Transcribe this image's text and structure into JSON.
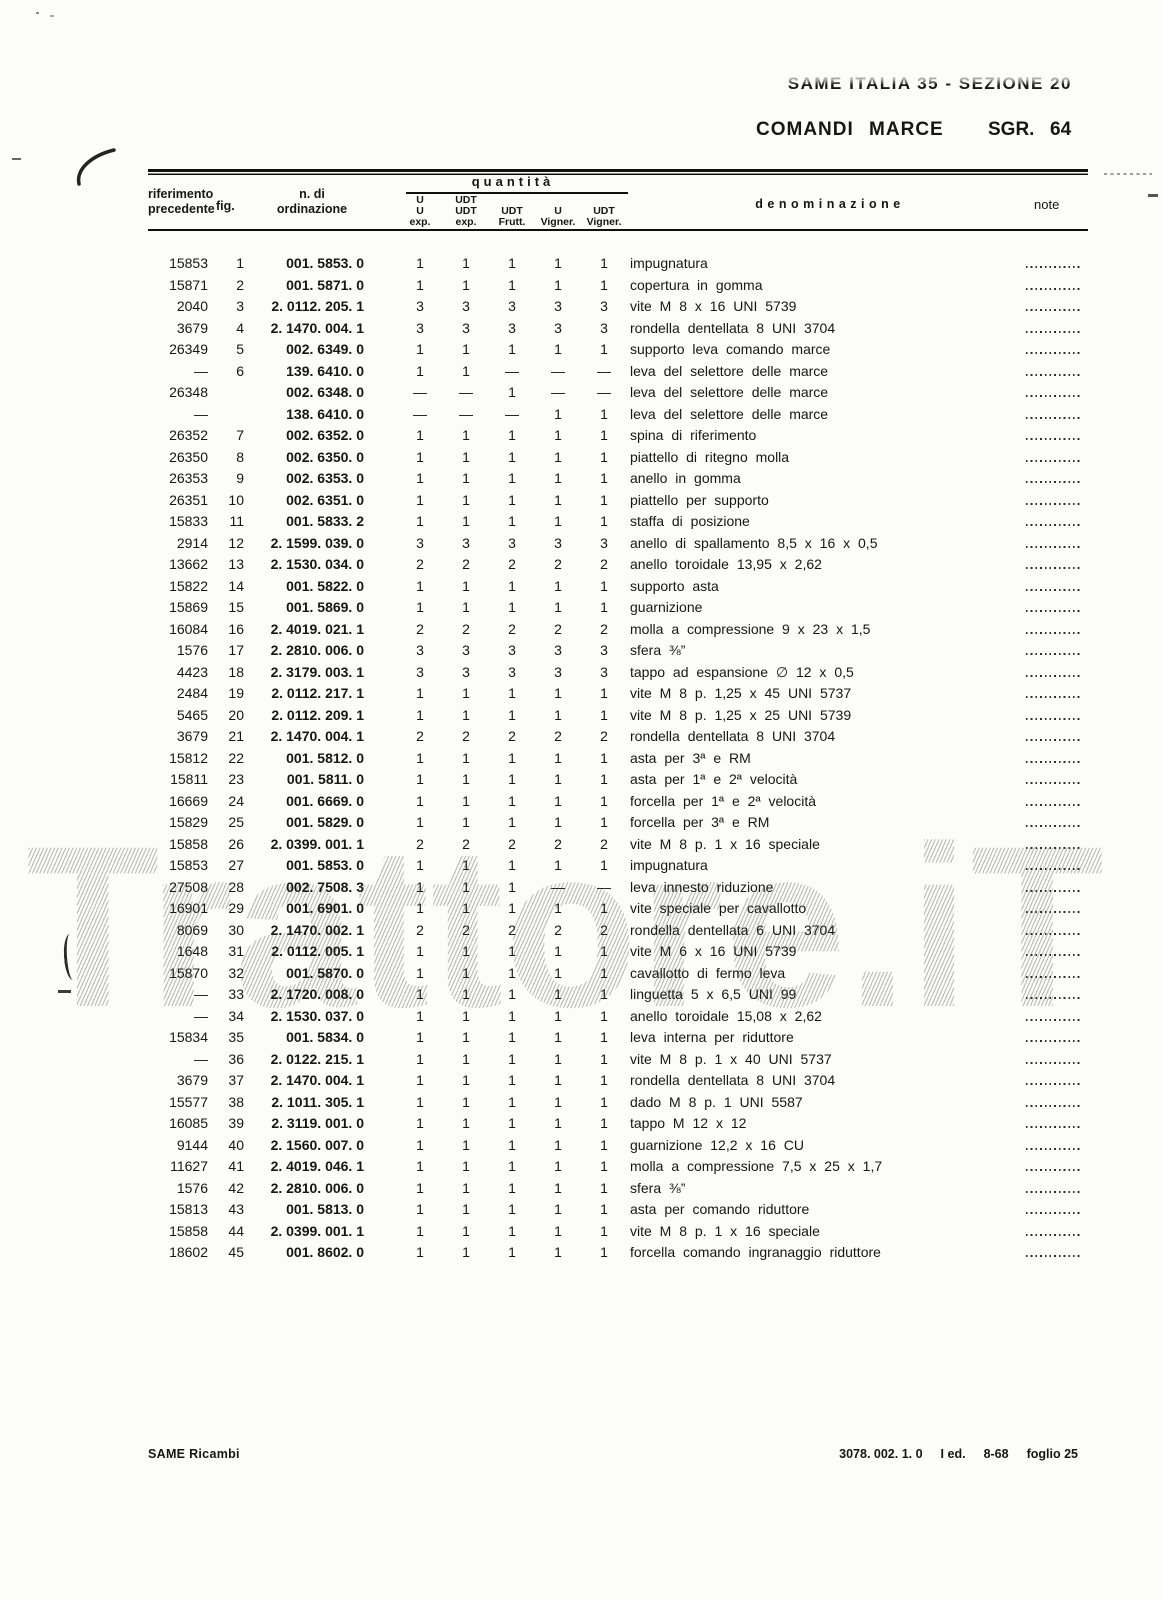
{
  "page_header": {
    "doc_ref": "SAME ITALIA 35 - SEZIONE 20",
    "title": "COMANDI MARCE",
    "sgr_label": "SGR.",
    "sgr_number": "64"
  },
  "table": {
    "headers": {
      "col_riferimento": [
        "riferimento",
        "precedente"
      ],
      "col_fig": "fig.",
      "col_ordinazione": [
        "n. di",
        "ordinazione"
      ],
      "quantita": "quantità",
      "qty_cols": [
        [
          "U",
          "U",
          "exp."
        ],
        [
          "UDT",
          "UDT",
          "exp."
        ],
        [
          "",
          "UDT",
          "Frutt."
        ],
        [
          "",
          "U",
          "Vigner."
        ],
        [
          "",
          "UDT",
          "Vigner."
        ]
      ],
      "col_denominazione": "denominazione",
      "col_note": "note"
    },
    "rows": [
      {
        "ref": "15853",
        "fig": "1",
        "ord": "001. 5853. 0",
        "q": [
          "1",
          "1",
          "1",
          "1",
          "1"
        ],
        "den": "impugnatura"
      },
      {
        "ref": "15871",
        "fig": "2",
        "ord": "001. 5871. 0",
        "q": [
          "1",
          "1",
          "1",
          "1",
          "1"
        ],
        "den": "copertura in gomma"
      },
      {
        "ref": "2040",
        "fig": "3",
        "ord": "2. 0112. 205. 1",
        "q": [
          "3",
          "3",
          "3",
          "3",
          "3"
        ],
        "den": "vite M 8 x 16 UNI 5739"
      },
      {
        "ref": "3679",
        "fig": "4",
        "ord": "2. 1470. 004. 1",
        "q": [
          "3",
          "3",
          "3",
          "3",
          "3"
        ],
        "den": "rondella dentellata 8 UNI 3704"
      },
      {
        "ref": "26349",
        "fig": "5",
        "ord": "002. 6349. 0",
        "q": [
          "1",
          "1",
          "1",
          "1",
          "1"
        ],
        "den": "supporto leva comando marce"
      },
      {
        "ref": "—",
        "fig": "6",
        "ord": "139. 6410. 0",
        "q": [
          "1",
          "1",
          "—",
          "—",
          "—"
        ],
        "den": "leva del selettore delle marce"
      },
      {
        "ref": "26348",
        "fig": "",
        "ord": "002. 6348. 0",
        "q": [
          "—",
          "—",
          "1",
          "—",
          "—"
        ],
        "den": "leva del selettore delle marce"
      },
      {
        "ref": "—",
        "fig": "",
        "ord": "138. 6410. 0",
        "q": [
          "—",
          "—",
          "—",
          "1",
          "1"
        ],
        "den": "leva del selettore delle marce"
      },
      {
        "ref": "26352",
        "fig": "7",
        "ord": "002. 6352. 0",
        "q": [
          "1",
          "1",
          "1",
          "1",
          "1"
        ],
        "den": "spina di riferimento"
      },
      {
        "ref": "26350",
        "fig": "8",
        "ord": "002. 6350. 0",
        "q": [
          "1",
          "1",
          "1",
          "1",
          "1"
        ],
        "den": "piattello di ritegno molla"
      },
      {
        "ref": "26353",
        "fig": "9",
        "ord": "002. 6353. 0",
        "q": [
          "1",
          "1",
          "1",
          "1",
          "1"
        ],
        "den": "anello  in gomma"
      },
      {
        "ref": "26351",
        "fig": "10",
        "ord": "002. 6351. 0",
        "q": [
          "1",
          "1",
          "1",
          "1",
          "1"
        ],
        "den": "piattello per supporto"
      },
      {
        "ref": "15833",
        "fig": "11",
        "ord": "001. 5833. 2",
        "q": [
          "1",
          "1",
          "1",
          "1",
          "1"
        ],
        "den": "staffa di posizione"
      },
      {
        "ref": "2914",
        "fig": "12",
        "ord": "2. 1599. 039. 0",
        "q": [
          "3",
          "3",
          "3",
          "3",
          "3"
        ],
        "den": "anello di spallamento 8,5 x 16 x 0,5"
      },
      {
        "ref": "13662",
        "fig": "13",
        "ord": "2. 1530. 034. 0",
        "q": [
          "2",
          "2",
          "2",
          "2",
          "2"
        ],
        "den": "anello toroidale 13,95 x 2,62"
      },
      {
        "ref": "15822",
        "fig": "14",
        "ord": "001. 5822. 0",
        "q": [
          "1",
          "1",
          "1",
          "1",
          "1"
        ],
        "den": "supporto asta"
      },
      {
        "ref": "15869",
        "fig": "15",
        "ord": "001. 5869. 0",
        "q": [
          "1",
          "1",
          "1",
          "1",
          "1"
        ],
        "den": "guarnizione"
      },
      {
        "ref": "16084",
        "fig": "16",
        "ord": "2. 4019. 021. 1",
        "q": [
          "2",
          "2",
          "2",
          "2",
          "2"
        ],
        "den": "molla a compressione 9 x 23 x 1,5"
      },
      {
        "ref": "1576",
        "fig": "17",
        "ord": "2. 2810. 006. 0",
        "q": [
          "3",
          "3",
          "3",
          "3",
          "3"
        ],
        "den": "sfera ⅜”"
      },
      {
        "ref": "4423",
        "fig": "18",
        "ord": "2. 3179. 003. 1",
        "q": [
          "3",
          "3",
          "3",
          "3",
          "3"
        ],
        "den": "tappo ad espansione ∅ 12 x 0,5"
      },
      {
        "ref": "2484",
        "fig": "19",
        "ord": "2. 0112. 217. 1",
        "q": [
          "1",
          "1",
          "1",
          "1",
          "1"
        ],
        "den": "vite M 8 p. 1,25 x 45 UNI 5737"
      },
      {
        "ref": "5465",
        "fig": "20",
        "ord": "2. 0112. 209. 1",
        "q": [
          "1",
          "1",
          "1",
          "1",
          "1"
        ],
        "den": "vite M 8 p. 1,25 x 25 UNI 5739"
      },
      {
        "ref": "3679",
        "fig": "21",
        "ord": "2. 1470. 004. 1",
        "q": [
          "2",
          "2",
          "2",
          "2",
          "2"
        ],
        "den": "rondella dentellata 8 UNI 3704"
      },
      {
        "ref": "15812",
        "fig": "22",
        "ord": "001. 5812. 0",
        "q": [
          "1",
          "1",
          "1",
          "1",
          "1"
        ],
        "den": "asta per 3ª e RM"
      },
      {
        "ref": "15811",
        "fig": "23",
        "ord": "001. 5811. 0",
        "q": [
          "1",
          "1",
          "1",
          "1",
          "1"
        ],
        "den": "asta per 1ª e 2ª velocità"
      },
      {
        "ref": "16669",
        "fig": "24",
        "ord": "001. 6669. 0",
        "q": [
          "1",
          "1",
          "1",
          "1",
          "1"
        ],
        "den": "forcella per 1ª e 2ª velocità"
      },
      {
        "ref": "15829",
        "fig": "25",
        "ord": "001. 5829. 0",
        "q": [
          "1",
          "1",
          "1",
          "1",
          "1"
        ],
        "den": "forcella per 3ª e RM"
      },
      {
        "ref": "15858",
        "fig": "26",
        "ord": "2. 0399. 001. 1",
        "q": [
          "2",
          "2",
          "2",
          "2",
          "2"
        ],
        "den": "vite M 8 p. 1 x 16 speciale"
      },
      {
        "ref": "15853",
        "fig": "27",
        "ord": "001. 5853. 0",
        "q": [
          "1",
          "1",
          "1",
          "1",
          "1"
        ],
        "den": "impugnatura"
      },
      {
        "ref": "27508",
        "fig": "28",
        "ord": "002. 7508. 3",
        "q": [
          "1",
          "1",
          "1",
          "—",
          "—"
        ],
        "den": "leva innesto riduzione"
      },
      {
        "ref": "16901",
        "fig": "29",
        "ord": "001. 6901. 0",
        "q": [
          "1",
          "1",
          "1",
          "1",
          "1"
        ],
        "den": "vite speciale per cavallotto"
      },
      {
        "ref": "8069",
        "fig": "30",
        "ord": "2. 1470. 002. 1",
        "q": [
          "2",
          "2",
          "2",
          "2",
          "2"
        ],
        "den": "rondella dentellata 6 UNI 3704"
      },
      {
        "ref": "1648",
        "fig": "31",
        "ord": "2. 0112. 005. 1",
        "q": [
          "1",
          "1",
          "1",
          "1",
          "1"
        ],
        "den": "vite M 6 x 16 UNI 5739"
      },
      {
        "ref": "15870",
        "fig": "32",
        "ord": "001. 5870. 0",
        "q": [
          "1",
          "1",
          "1",
          "1",
          "1"
        ],
        "den": "cavallotto di fermo leva"
      },
      {
        "ref": "—",
        "fig": "33",
        "ord": "2. 1720. 008. 0",
        "q": [
          "1",
          "1",
          "1",
          "1",
          "1"
        ],
        "den": "linguetta 5 x 6,5 UNI 99"
      },
      {
        "ref": "—",
        "fig": "34",
        "ord": "2. 1530. 037. 0",
        "q": [
          "1",
          "1",
          "1",
          "1",
          "1"
        ],
        "den": "anello toroidale 15,08 x 2,62"
      },
      {
        "ref": "15834",
        "fig": "35",
        "ord": "001. 5834. 0",
        "q": [
          "1",
          "1",
          "1",
          "1",
          "1"
        ],
        "den": "leva interna per riduttore"
      },
      {
        "ref": "—",
        "fig": "36",
        "ord": "2. 0122. 215. 1",
        "q": [
          "1",
          "1",
          "1",
          "1",
          "1"
        ],
        "den": "vite M 8 p. 1 x 40 UNI 5737"
      },
      {
        "ref": "3679",
        "fig": "37",
        "ord": "2. 1470. 004. 1",
        "q": [
          "1",
          "1",
          "1",
          "1",
          "1"
        ],
        "den": "rondella dentellata 8 UNI 3704"
      },
      {
        "ref": "15577",
        "fig": "38",
        "ord": "2. 1011. 305. 1",
        "q": [
          "1",
          "1",
          "1",
          "1",
          "1"
        ],
        "den": "dado M 8 p. 1 UNI 5587"
      },
      {
        "ref": "16085",
        "fig": "39",
        "ord": "2. 3119. 001. 0",
        "q": [
          "1",
          "1",
          "1",
          "1",
          "1"
        ],
        "den": "tappo M 12 x 12"
      },
      {
        "ref": "9144",
        "fig": "40",
        "ord": "2. 1560. 007. 0",
        "q": [
          "1",
          "1",
          "1",
          "1",
          "1"
        ],
        "den": "guarnizione 12,2 x 16 CU"
      },
      {
        "ref": "11627",
        "fig": "41",
        "ord": "2. 4019. 046. 1",
        "q": [
          "1",
          "1",
          "1",
          "1",
          "1"
        ],
        "den": "molla a compressione 7,5 x 25 x 1,7"
      },
      {
        "ref": "1576",
        "fig": "42",
        "ord": "2. 2810. 006. 0",
        "q": [
          "1",
          "1",
          "1",
          "1",
          "1"
        ],
        "den": "sfera ⅜”"
      },
      {
        "ref": "15813",
        "fig": "43",
        "ord": "001. 5813. 0",
        "q": [
          "1",
          "1",
          "1",
          "1",
          "1"
        ],
        "den": "asta per comando riduttore"
      },
      {
        "ref": "15858",
        "fig": "44",
        "ord": "2. 0399. 001. 1",
        "q": [
          "1",
          "1",
          "1",
          "1",
          "1"
        ],
        "den": "vite M 8 p. 1 x 16 speciale"
      },
      {
        "ref": "18602",
        "fig": "45",
        "ord": "001. 8602. 0",
        "q": [
          "1",
          "1",
          "1",
          "1",
          "1"
        ],
        "den": "forcella comando ingranaggio riduttore"
      }
    ]
  },
  "watermark": "Trattore.iT",
  "footer": {
    "left": "SAME Ricambi",
    "right_code": "3078. 002. 1. 0",
    "right_ed": "I ed.",
    "right_date": "8-68",
    "right_foglio": "foglio 25"
  }
}
